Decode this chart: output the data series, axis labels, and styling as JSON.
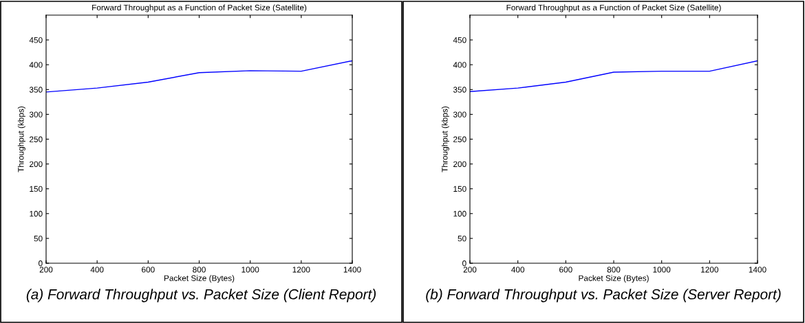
{
  "chart_data": [
    {
      "type": "line",
      "title": "Forward Throughput as a Function of Packet Size (Satellite)",
      "xlabel": "Packet Size (Bytes)",
      "ylabel": "Throughput (kbps)",
      "x": [
        200,
        400,
        600,
        800,
        1000,
        1200,
        1400
      ],
      "series": [
        {
          "color": "#0000ff",
          "values": [
            345,
            353,
            365,
            384,
            388,
            387,
            408
          ]
        }
      ],
      "xlim": [
        200,
        1400
      ],
      "xticks": [
        200,
        400,
        600,
        800,
        1000,
        1200,
        1400
      ],
      "ylim": [
        0,
        500
      ],
      "yticks": [
        0,
        50,
        100,
        150,
        200,
        250,
        300,
        350,
        400,
        450
      ],
      "grid": false,
      "legend": false,
      "annotations": [
        "(a) Forward Throughput vs. Packet Size (Client Report)"
      ]
    },
    {
      "type": "line",
      "title": "Forward Throughput as a Function of Packet Size (Satellite)",
      "xlabel": "Packet Size (Bytes)",
      "ylabel": "Throughput (kbps)",
      "x": [
        200,
        400,
        600,
        800,
        1000,
        1200,
        1400
      ],
      "series": [
        {
          "color": "#0000ff",
          "values": [
            346,
            353,
            365,
            385,
            387,
            387,
            408
          ]
        }
      ],
      "xlim": [
        200,
        1400
      ],
      "xticks": [
        200,
        400,
        600,
        800,
        1000,
        1200,
        1400
      ],
      "ylim": [
        0,
        500
      ],
      "yticks": [
        0,
        50,
        100,
        150,
        200,
        250,
        300,
        350,
        400,
        450
      ],
      "grid": false,
      "legend": false,
      "annotations": [
        "(b) Forward Throughput vs. Packet Size (Server Report)"
      ]
    }
  ]
}
